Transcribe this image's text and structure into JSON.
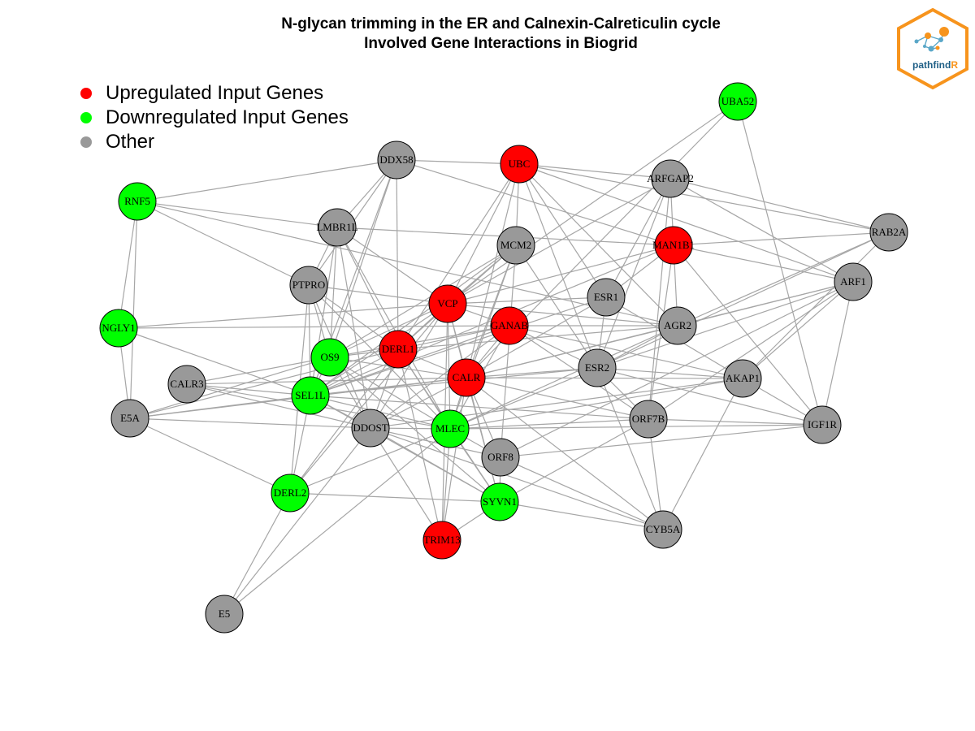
{
  "title": {
    "line1": "N-glycan trimming in the ER and Calnexin-Calreticulin cycle",
    "line2": "Involved Gene Interactions in Biogrid"
  },
  "legend": [
    {
      "label": "Upregulated Input Genes",
      "color": "#ff0000"
    },
    {
      "label": "Downregulated Input Genes",
      "color": "#00ff00"
    },
    {
      "label": "Other",
      "color": "#999999"
    }
  ],
  "logo": {
    "text_main": "pathfind",
    "text_accent": "R",
    "accent_color": "#f7941d",
    "text_color": "#1f5f86"
  },
  "colors": {
    "up": "#ff0000",
    "down": "#00ff00",
    "other": "#999999",
    "edge": "#a6a6a6",
    "node_border": "#000000"
  },
  "nodes": [
    {
      "id": "UBA52",
      "status": "down"
    },
    {
      "id": "DDX58",
      "status": "other"
    },
    {
      "id": "UBC",
      "status": "up"
    },
    {
      "id": "ARFGAP2",
      "status": "other"
    },
    {
      "id": "RNF5",
      "status": "down"
    },
    {
      "id": "LMBR1L",
      "status": "other"
    },
    {
      "id": "RAB2A",
      "status": "other"
    },
    {
      "id": "MCM2",
      "status": "other"
    },
    {
      "id": "MAN1B1",
      "status": "up"
    },
    {
      "id": "ARF1",
      "status": "other"
    },
    {
      "id": "PTPRO",
      "status": "other"
    },
    {
      "id": "ESR1",
      "status": "other"
    },
    {
      "id": "VCP",
      "status": "up"
    },
    {
      "id": "NGLY1",
      "status": "down"
    },
    {
      "id": "GANAB",
      "status": "up"
    },
    {
      "id": "AGR2",
      "status": "other"
    },
    {
      "id": "OS9",
      "status": "down"
    },
    {
      "id": "DERL1",
      "status": "up"
    },
    {
      "id": "ESR2",
      "status": "other"
    },
    {
      "id": "CALR3",
      "status": "other"
    },
    {
      "id": "CALR",
      "status": "up"
    },
    {
      "id": "AKAP1",
      "status": "other"
    },
    {
      "id": "SEL1L",
      "status": "down"
    },
    {
      "id": "E5A",
      "status": "other"
    },
    {
      "id": "ORF7B",
      "status": "other"
    },
    {
      "id": "IGF1R",
      "status": "other"
    },
    {
      "id": "DDOST",
      "status": "other"
    },
    {
      "id": "MLEC",
      "status": "down"
    },
    {
      "id": "ORF8",
      "status": "other"
    },
    {
      "id": "DERL2",
      "status": "down"
    },
    {
      "id": "SYVN1",
      "status": "down"
    },
    {
      "id": "CYB5A",
      "status": "other"
    },
    {
      "id": "TRIM13",
      "status": "up"
    },
    {
      "id": "E5",
      "status": "other"
    }
  ],
  "edges": [
    [
      "UBA52",
      "VCP"
    ],
    [
      "UBA52",
      "CALR"
    ],
    [
      "UBA52",
      "IGF1R"
    ],
    [
      "DDX58",
      "UBC"
    ],
    [
      "DDX58",
      "MAN1B1"
    ],
    [
      "DDX58",
      "LMBR1L"
    ],
    [
      "DDX58",
      "PTPRO"
    ],
    [
      "DDX58",
      "OS9"
    ],
    [
      "DDX58",
      "DERL1"
    ],
    [
      "DDX58",
      "SEL1L"
    ],
    [
      "UBC",
      "ARFGAP2"
    ],
    [
      "UBC",
      "RAB2A"
    ],
    [
      "UBC",
      "MCM2"
    ],
    [
      "UBC",
      "ESR1"
    ],
    [
      "UBC",
      "ESR2"
    ],
    [
      "UBC",
      "AGR2"
    ],
    [
      "UBC",
      "ARF1"
    ],
    [
      "UBC",
      "VCP"
    ],
    [
      "UBC",
      "CALR"
    ],
    [
      "UBC",
      "DERL1"
    ],
    [
      "ARFGAP2",
      "RAB2A"
    ],
    [
      "ARFGAP2",
      "ARF1"
    ],
    [
      "ARFGAP2",
      "MAN1B1"
    ],
    [
      "ARFGAP2",
      "ESR1"
    ],
    [
      "ARFGAP2",
      "ESR2"
    ],
    [
      "ARFGAP2",
      "VCP"
    ],
    [
      "ARFGAP2",
      "ORF7B"
    ],
    [
      "RNF5",
      "DDX58"
    ],
    [
      "RNF5",
      "LMBR1L"
    ],
    [
      "RNF5",
      "PTPRO"
    ],
    [
      "RNF5",
      "NGLY1"
    ],
    [
      "RNF5",
      "E5A"
    ],
    [
      "RNF5",
      "AGR2"
    ],
    [
      "LMBR1L",
      "MAN1B1"
    ],
    [
      "LMBR1L",
      "PTPRO"
    ],
    [
      "LMBR1L",
      "OS9"
    ],
    [
      "LMBR1L",
      "DERL1"
    ],
    [
      "LMBR1L",
      "SEL1L"
    ],
    [
      "LMBR1L",
      "MLEC"
    ],
    [
      "LMBR1L",
      "VCP"
    ],
    [
      "LMBR1L",
      "DDOST"
    ],
    [
      "RAB2A",
      "MAN1B1"
    ],
    [
      "RAB2A",
      "ESR2"
    ],
    [
      "RAB2A",
      "AGR2"
    ],
    [
      "RAB2A",
      "AKAP1"
    ],
    [
      "MCM2",
      "VCP"
    ],
    [
      "MCM2",
      "DERL1"
    ],
    [
      "MCM2",
      "CALR"
    ],
    [
      "MCM2",
      "ESR2"
    ],
    [
      "MCM2",
      "SEL1L"
    ],
    [
      "MCM2",
      "ORF8"
    ],
    [
      "MCM2",
      "MLEC"
    ],
    [
      "MCM2",
      "OS9"
    ],
    [
      "MAN1B1",
      "VCP"
    ],
    [
      "MAN1B1",
      "ESR1"
    ],
    [
      "MAN1B1",
      "AGR2"
    ],
    [
      "MAN1B1",
      "ARF1"
    ],
    [
      "MAN1B1",
      "SEL1L"
    ],
    [
      "MAN1B1",
      "IGF1R"
    ],
    [
      "MAN1B1",
      "ORF7B"
    ],
    [
      "ARF1",
      "AKAP1"
    ],
    [
      "ARF1",
      "AGR2"
    ],
    [
      "ARF1",
      "CALR"
    ],
    [
      "ARF1",
      "ORF7B"
    ],
    [
      "ARF1",
      "IGF1R"
    ],
    [
      "ARF1",
      "ESR2"
    ],
    [
      "ARF1",
      "ORF8"
    ],
    [
      "PTPRO",
      "OS9"
    ],
    [
      "PTPRO",
      "SEL1L"
    ],
    [
      "PTPRO",
      "VCP"
    ],
    [
      "PTPRO",
      "DERL1"
    ],
    [
      "PTPRO",
      "DERL2"
    ],
    [
      "PTPRO",
      "DDOST"
    ],
    [
      "PTPRO",
      "MLEC"
    ],
    [
      "ESR1",
      "VCP"
    ],
    [
      "ESR1",
      "CALR"
    ],
    [
      "ESR1",
      "ESR2"
    ],
    [
      "ESR1",
      "SEL1L"
    ],
    [
      "ESR1",
      "AKAP1"
    ],
    [
      "NGLY1",
      "VCP"
    ],
    [
      "NGLY1",
      "GANAB"
    ],
    [
      "NGLY1",
      "E5A"
    ],
    [
      "NGLY1",
      "SEL1L"
    ],
    [
      "VCP",
      "GANAB"
    ],
    [
      "VCP",
      "DERL1"
    ],
    [
      "VCP",
      "CALR"
    ],
    [
      "VCP",
      "OS9"
    ],
    [
      "VCP",
      "SEL1L"
    ],
    [
      "VCP",
      "DDOST"
    ],
    [
      "VCP",
      "MLEC"
    ],
    [
      "VCP",
      "SYVN1"
    ],
    [
      "VCP",
      "TRIM13"
    ],
    [
      "VCP",
      "AGR2"
    ],
    [
      "VCP",
      "DERL2"
    ],
    [
      "GANAB",
      "CALR"
    ],
    [
      "GANAB",
      "DERL1"
    ],
    [
      "GANAB",
      "ESR2"
    ],
    [
      "GANAB",
      "AKAP1"
    ],
    [
      "GANAB",
      "AGR2"
    ],
    [
      "GANAB",
      "ORF7B"
    ],
    [
      "GANAB",
      "MLEC"
    ],
    [
      "GANAB",
      "OS9"
    ],
    [
      "GANAB",
      "SEL1L"
    ],
    [
      "GANAB",
      "DDOST"
    ],
    [
      "AGR2",
      "DERL1"
    ],
    [
      "AGR2",
      "ESR2"
    ],
    [
      "AGR2",
      "MLEC"
    ],
    [
      "AGR2",
      "CALR"
    ],
    [
      "OS9",
      "SEL1L"
    ],
    [
      "OS9",
      "DERL1"
    ],
    [
      "OS9",
      "CALR"
    ],
    [
      "OS9",
      "SYVN1"
    ],
    [
      "OS9",
      "DDOST"
    ],
    [
      "OS9",
      "MLEC"
    ],
    [
      "OS9",
      "CALR3"
    ],
    [
      "OS9",
      "E5A"
    ],
    [
      "DERL1",
      "CALR"
    ],
    [
      "DERL1",
      "SEL1L"
    ],
    [
      "DERL1",
      "DERL2"
    ],
    [
      "DERL1",
      "MLEC"
    ],
    [
      "DERL1",
      "SYVN1"
    ],
    [
      "DERL1",
      "TRIM13"
    ],
    [
      "DERL1",
      "DDOST"
    ],
    [
      "DERL1",
      "E5A"
    ],
    [
      "ESR2",
      "CALR"
    ],
    [
      "ESR2",
      "AKAP1"
    ],
    [
      "ESR2",
      "ORF7B"
    ],
    [
      "ESR2",
      "MLEC"
    ],
    [
      "ESR2",
      "IGF1R"
    ],
    [
      "ESR2",
      "CYB5A"
    ],
    [
      "ESR2",
      "SEL1L"
    ],
    [
      "CALR3",
      "SEL1L"
    ],
    [
      "CALR3",
      "DDOST"
    ],
    [
      "CALR3",
      "MLEC"
    ],
    [
      "CALR3",
      "CALR"
    ],
    [
      "CALR",
      "SEL1L"
    ],
    [
      "CALR",
      "DDOST"
    ],
    [
      "CALR",
      "MLEC"
    ],
    [
      "CALR",
      "ORF7B"
    ],
    [
      "CALR",
      "AKAP1"
    ],
    [
      "CALR",
      "ORF8"
    ],
    [
      "CALR",
      "SYVN1"
    ],
    [
      "CALR",
      "E5A"
    ],
    [
      "CALR",
      "CYB5A"
    ],
    [
      "CALR",
      "TRIM13"
    ],
    [
      "AKAP1",
      "MLEC"
    ],
    [
      "AKAP1",
      "CYB5A"
    ],
    [
      "AKAP1",
      "IGF1R"
    ],
    [
      "AKAP1",
      "DDOST"
    ],
    [
      "SEL1L",
      "DDOST"
    ],
    [
      "SEL1L",
      "MLEC"
    ],
    [
      "SEL1L",
      "DERL2"
    ],
    [
      "SEL1L",
      "SYVN1"
    ],
    [
      "SEL1L",
      "E5A"
    ],
    [
      "SEL1L",
      "ORF7B"
    ],
    [
      "E5A",
      "DDOST"
    ],
    [
      "E5A",
      "DERL2"
    ],
    [
      "ORF7B",
      "MLEC"
    ],
    [
      "ORF7B",
      "CYB5A"
    ],
    [
      "ORF7B",
      "IGF1R"
    ],
    [
      "ORF7B",
      "SYVN1"
    ],
    [
      "DDOST",
      "MLEC"
    ],
    [
      "DDOST",
      "SYVN1"
    ],
    [
      "DDOST",
      "TRIM13"
    ],
    [
      "DDOST",
      "CYB5A"
    ],
    [
      "DDOST",
      "ORF8"
    ],
    [
      "DDOST",
      "E5"
    ],
    [
      "MLEC",
      "SYVN1"
    ],
    [
      "MLEC",
      "ORF8"
    ],
    [
      "MLEC",
      "TRIM13"
    ],
    [
      "MLEC",
      "IGF1R"
    ],
    [
      "MLEC",
      "DERL2"
    ],
    [
      "ORF8",
      "SYVN1"
    ],
    [
      "ORF8",
      "CYB5A"
    ],
    [
      "ORF8",
      "IGF1R"
    ],
    [
      "DERL2",
      "SYVN1"
    ],
    [
      "DERL2",
      "E5"
    ],
    [
      "SYVN1",
      "CYB5A"
    ],
    [
      "SYVN1",
      "TRIM13"
    ],
    [
      "E5",
      "MLEC"
    ]
  ]
}
